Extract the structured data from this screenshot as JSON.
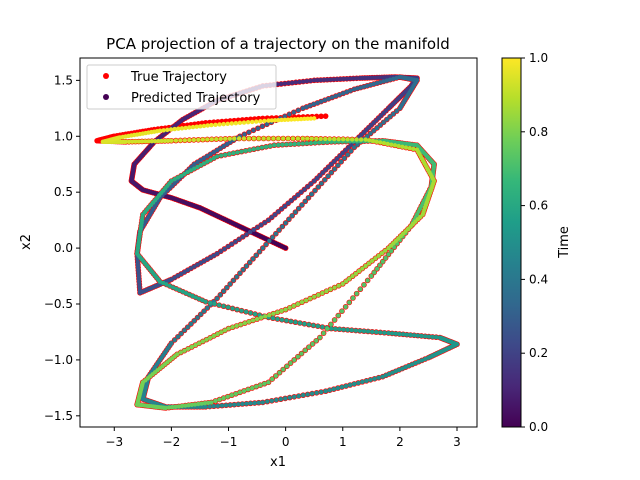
{
  "chart_data": {
    "type": "scatter",
    "title": "PCA projection of a trajectory on the manifold",
    "xlabel": "x1",
    "ylabel": "x2",
    "xlim": [
      -3.6,
      3.35
    ],
    "ylim": [
      -1.6,
      1.7
    ],
    "xticks": [
      -3,
      -2,
      -1,
      0,
      1,
      2,
      3
    ],
    "yticks": [
      -1.5,
      -1.0,
      -0.5,
      0.0,
      0.5,
      1.0,
      1.5
    ],
    "xtick_labels": [
      "−3",
      "−2",
      "−1",
      "0",
      "1",
      "2",
      "3"
    ],
    "ytick_labels": [
      "−1.5",
      "−1.0",
      "−0.5",
      "0.0",
      "0.5",
      "1.0",
      "1.5"
    ],
    "grid": false,
    "legend_position": "top-left",
    "series": [
      {
        "name": "True Trajectory",
        "color": "#ff0000",
        "marker": "dot",
        "points": [
          [
            0.0,
            0.0
          ],
          [
            -0.5,
            0.12
          ],
          [
            -1.0,
            0.24
          ],
          [
            -1.5,
            0.36
          ],
          [
            -2.0,
            0.45
          ],
          [
            -2.5,
            0.52
          ],
          [
            -2.7,
            0.6
          ],
          [
            -2.65,
            0.75
          ],
          [
            -2.3,
            0.95
          ],
          [
            -1.8,
            1.15
          ],
          [
            -1.2,
            1.32
          ],
          [
            -0.4,
            1.45
          ],
          [
            0.5,
            1.5
          ],
          [
            1.3,
            1.52
          ],
          [
            1.9,
            1.53
          ],
          [
            2.3,
            1.52
          ],
          [
            2.2,
            1.45
          ],
          [
            1.8,
            1.25
          ],
          [
            1.2,
            0.95
          ],
          [
            0.5,
            0.6
          ],
          [
            -0.3,
            0.25
          ],
          [
            -1.2,
            -0.05
          ],
          [
            -2.0,
            -0.28
          ],
          [
            -2.55,
            -0.4
          ],
          [
            -2.6,
            -0.05
          ],
          [
            -2.55,
            0.15
          ],
          [
            -2.2,
            0.45
          ],
          [
            -1.6,
            0.75
          ],
          [
            -0.8,
            1.0
          ],
          [
            0.3,
            1.25
          ],
          [
            1.2,
            1.42
          ],
          [
            2.0,
            1.53
          ],
          [
            2.3,
            1.5
          ],
          [
            2.0,
            1.25
          ],
          [
            1.2,
            0.9
          ],
          [
            0.4,
            0.45
          ],
          [
            -0.4,
            0.0
          ],
          [
            -1.2,
            -0.45
          ],
          [
            -2.0,
            -0.85
          ],
          [
            -2.4,
            -1.15
          ],
          [
            -2.5,
            -1.35
          ],
          [
            -2.1,
            -1.42
          ],
          [
            -1.4,
            -1.42
          ],
          [
            -0.4,
            -1.38
          ],
          [
            0.7,
            -1.28
          ],
          [
            1.7,
            -1.15
          ],
          [
            2.5,
            -0.98
          ],
          [
            3.0,
            -0.86
          ],
          [
            2.7,
            -0.8
          ],
          [
            1.8,
            -0.76
          ],
          [
            0.8,
            -0.72
          ],
          [
            -0.3,
            -0.62
          ],
          [
            -1.4,
            -0.48
          ],
          [
            -2.2,
            -0.3
          ],
          [
            -2.6,
            -0.05
          ],
          [
            -2.5,
            0.3
          ],
          [
            -2.0,
            0.6
          ],
          [
            -1.2,
            0.82
          ],
          [
            -0.2,
            0.92
          ],
          [
            0.8,
            0.95
          ],
          [
            1.7,
            0.96
          ],
          [
            2.3,
            0.92
          ],
          [
            2.6,
            0.75
          ],
          [
            2.55,
            0.55
          ],
          [
            2.2,
            0.2
          ],
          [
            1.5,
            -0.25
          ],
          [
            0.6,
            -0.8
          ],
          [
            -0.3,
            -1.2
          ],
          [
            -1.3,
            -1.38
          ],
          [
            -2.1,
            -1.43
          ],
          [
            -2.6,
            -1.4
          ],
          [
            -2.5,
            -1.2
          ],
          [
            -1.9,
            -0.95
          ],
          [
            -1.0,
            -0.72
          ],
          [
            0.0,
            -0.55
          ],
          [
            1.0,
            -0.32
          ],
          [
            1.8,
            0.0
          ],
          [
            2.4,
            0.3
          ],
          [
            2.6,
            0.6
          ],
          [
            2.3,
            0.88
          ],
          [
            1.4,
            0.97
          ],
          [
            0.3,
            0.98
          ],
          [
            -0.9,
            0.98
          ],
          [
            -2.0,
            0.96
          ],
          [
            -2.8,
            0.95
          ],
          [
            -3.3,
            0.96
          ],
          [
            -3.0,
            1.0
          ],
          [
            -2.3,
            1.06
          ],
          [
            -1.4,
            1.12
          ],
          [
            -0.4,
            1.16
          ],
          [
            0.7,
            1.18
          ]
        ]
      },
      {
        "name": "Predicted Trajectory",
        "color": "#440154",
        "colored_by": "time",
        "marker": "dot",
        "points": [
          [
            0.0,
            0.0
          ],
          [
            -0.5,
            0.12
          ],
          [
            -1.0,
            0.24
          ],
          [
            -1.5,
            0.36
          ],
          [
            -2.0,
            0.45
          ],
          [
            -2.5,
            0.52
          ],
          [
            -2.7,
            0.6
          ],
          [
            -2.65,
            0.75
          ],
          [
            -2.3,
            0.95
          ],
          [
            -1.8,
            1.15
          ],
          [
            -1.2,
            1.32
          ],
          [
            -0.4,
            1.45
          ],
          [
            0.5,
            1.5
          ],
          [
            1.3,
            1.52
          ],
          [
            1.9,
            1.53
          ],
          [
            2.3,
            1.52
          ],
          [
            2.2,
            1.45
          ],
          [
            1.8,
            1.25
          ],
          [
            1.2,
            0.95
          ],
          [
            0.5,
            0.6
          ],
          [
            -0.3,
            0.25
          ],
          [
            -1.2,
            -0.05
          ],
          [
            -2.0,
            -0.28
          ],
          [
            -2.55,
            -0.4
          ],
          [
            -2.6,
            -0.05
          ],
          [
            -2.55,
            0.15
          ],
          [
            -2.2,
            0.45
          ],
          [
            -1.6,
            0.75
          ],
          [
            -0.8,
            1.0
          ],
          [
            0.3,
            1.25
          ],
          [
            1.2,
            1.42
          ],
          [
            2.0,
            1.53
          ],
          [
            2.3,
            1.5
          ],
          [
            2.0,
            1.25
          ],
          [
            1.2,
            0.9
          ],
          [
            0.4,
            0.45
          ],
          [
            -0.4,
            0.0
          ],
          [
            -1.2,
            -0.45
          ],
          [
            -2.0,
            -0.85
          ],
          [
            -2.4,
            -1.15
          ],
          [
            -2.5,
            -1.35
          ],
          [
            -2.1,
            -1.42
          ],
          [
            -1.4,
            -1.42
          ],
          [
            -0.4,
            -1.38
          ],
          [
            0.7,
            -1.28
          ],
          [
            1.7,
            -1.15
          ],
          [
            2.5,
            -0.98
          ],
          [
            3.0,
            -0.86
          ],
          [
            2.7,
            -0.8
          ],
          [
            1.8,
            -0.76
          ],
          [
            0.8,
            -0.72
          ],
          [
            -0.3,
            -0.62
          ],
          [
            -1.4,
            -0.48
          ],
          [
            -2.2,
            -0.3
          ],
          [
            -2.6,
            -0.05
          ],
          [
            -2.5,
            0.3
          ],
          [
            -2.0,
            0.6
          ],
          [
            -1.2,
            0.82
          ],
          [
            -0.2,
            0.92
          ],
          [
            0.8,
            0.95
          ],
          [
            1.7,
            0.96
          ],
          [
            2.3,
            0.92
          ],
          [
            2.6,
            0.75
          ],
          [
            2.55,
            0.55
          ],
          [
            2.2,
            0.2
          ],
          [
            1.5,
            -0.25
          ],
          [
            0.6,
            -0.8
          ],
          [
            -0.3,
            -1.2
          ],
          [
            -1.3,
            -1.38
          ],
          [
            -2.1,
            -1.43
          ],
          [
            -2.6,
            -1.4
          ],
          [
            -2.5,
            -1.2
          ],
          [
            -1.9,
            -0.95
          ],
          [
            -1.0,
            -0.72
          ],
          [
            0.0,
            -0.55
          ],
          [
            1.0,
            -0.32
          ],
          [
            1.8,
            0.0
          ],
          [
            2.4,
            0.3
          ],
          [
            2.6,
            0.6
          ],
          [
            2.3,
            0.88
          ],
          [
            1.4,
            0.97
          ],
          [
            0.3,
            0.98
          ],
          [
            -0.9,
            0.98
          ],
          [
            -2.0,
            0.96
          ],
          [
            -2.8,
            0.95
          ],
          [
            -3.2,
            0.95
          ],
          [
            -2.9,
            0.99
          ],
          [
            -2.2,
            1.05
          ],
          [
            -1.3,
            1.1
          ],
          [
            -0.3,
            1.14
          ],
          [
            0.5,
            1.16
          ]
        ]
      }
    ],
    "colorbar": {
      "label": "Time",
      "range": [
        0.0,
        1.0
      ],
      "ticks": [
        0.0,
        0.2,
        0.4,
        0.6,
        0.8,
        1.0
      ],
      "tick_labels": [
        "0.0",
        "0.2",
        "0.4",
        "0.6",
        "0.8",
        "1.0"
      ],
      "colormap": "viridis",
      "stops": [
        "#440154",
        "#482878",
        "#3e4989",
        "#31688e",
        "#26828e",
        "#1f9e89",
        "#35b779",
        "#6ece58",
        "#b5de2b",
        "#fde725"
      ]
    }
  }
}
